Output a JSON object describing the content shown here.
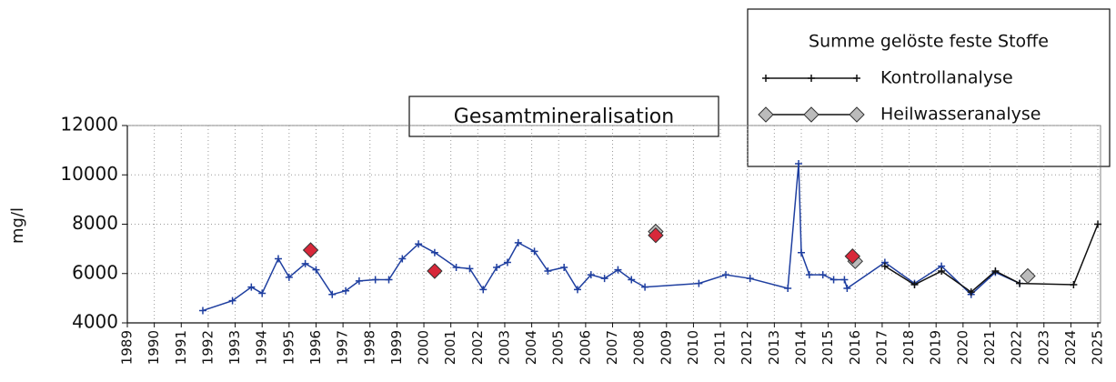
{
  "chart_data": {
    "type": "line",
    "title": "Gesamtmineralisation",
    "y_label": "mg/l",
    "legend_title": "Summe gelöste feste Stoffe",
    "legend": "top-right",
    "grid": true,
    "xlim": [
      1989,
      2025.1
    ],
    "xticks": [
      1989,
      1990,
      1991,
      1992,
      1993,
      1994,
      1995,
      1996,
      1997,
      1998,
      1999,
      2000,
      2001,
      2002,
      2003,
      2004,
      2005,
      2006,
      2007,
      2008,
      2009,
      2010,
      2011,
      2012,
      2013,
      2014,
      2015,
      2016,
      2017,
      2018,
      2019,
      2020,
      2021,
      2022,
      2023,
      2024,
      2025
    ],
    "ylim": [
      4000,
      12000
    ],
    "yticks": [
      4000,
      6000,
      8000,
      10000,
      12000
    ],
    "series": [
      {
        "color": "#1f3fa0",
        "marker": "plus",
        "line": true,
        "x": [
          1991.8,
          1992.9,
          1993.6,
          1994.0,
          1994.6,
          1995.0,
          1995.6,
          1996.0,
          1996.6,
          1997.1,
          1997.6,
          1998.2,
          1998.7,
          1999.2,
          1999.8,
          2000.4,
          2001.2,
          2001.7,
          2002.2,
          2002.7,
          2003.1,
          2003.5,
          2004.1,
          2004.6,
          2005.2,
          2005.7,
          2006.2,
          2006.7,
          2007.2,
          2007.7,
          2008.2,
          2010.2,
          2011.2,
          2012.1,
          2013.5,
          2013.9,
          2014.0,
          2014.3,
          2014.8,
          2015.2,
          2015.6,
          2015.7,
          2017.1,
          2018.2,
          2019.2,
          2020.3,
          2021.2,
          2022.1
        ],
        "values": [
          4500,
          4900,
          5450,
          5200,
          6600,
          5850,
          6400,
          6150,
          5150,
          5300,
          5700,
          5750,
          5750,
          6600,
          7200,
          6850,
          6250,
          6200,
          5350,
          6250,
          6450,
          7250,
          6900,
          6100,
          6250,
          5350,
          5950,
          5800,
          6150,
          5750,
          5450,
          5600,
          5950,
          5800,
          5400,
          10450,
          6850,
          5950,
          5950,
          5750,
          5750,
          5400,
          6450,
          5600,
          6300,
          5150,
          6050,
          5600
        ]
      },
      {
        "name": "Kontrollanalyse",
        "color": "#111111",
        "marker": "plus",
        "line": true,
        "x": [
          2017.1,
          2018.2,
          2019.2,
          2020.3,
          2021.2,
          2022.1,
          2024.1,
          2025.0
        ],
        "values": [
          6300,
          5550,
          6100,
          5250,
          6100,
          5600,
          5550,
          8000
        ]
      },
      {
        "name": "Heilwasseranalyse",
        "color": "#bbbbbb",
        "marker": "diamond",
        "line": false,
        "x": [
          2008.6,
          2016.0,
          2022.4
        ],
        "values": [
          7700,
          6500,
          5900
        ]
      },
      {
        "color": "#d8283a",
        "marker": "diamond",
        "line": false,
        "x": [
          1995.8,
          2000.4,
          2008.6,
          2015.9
        ],
        "values": [
          6950,
          6100,
          7550,
          6700
        ]
      }
    ]
  }
}
